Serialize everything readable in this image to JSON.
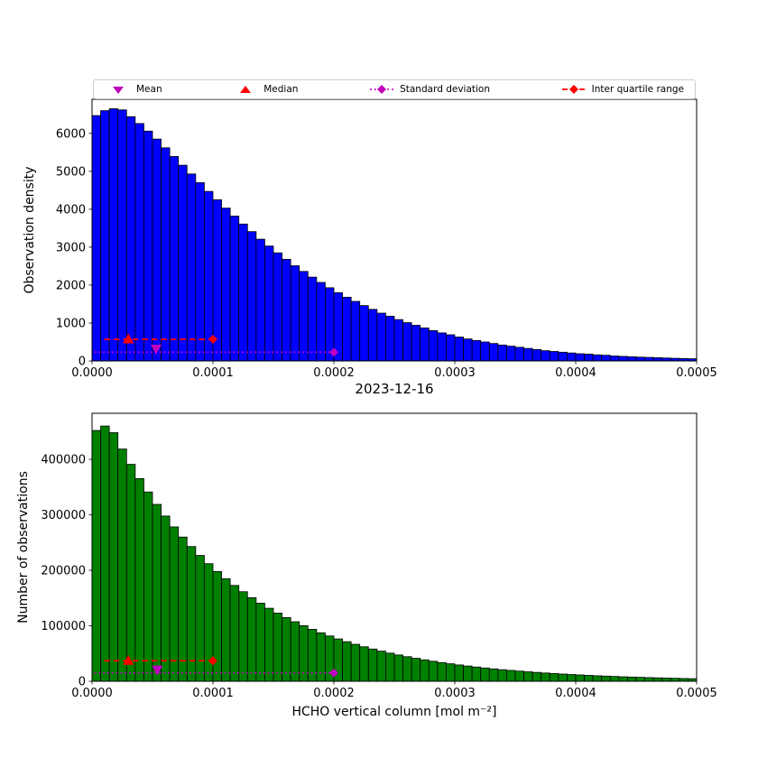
{
  "legend": {
    "items": [
      {
        "label": "Mean",
        "marker": "triangle-down",
        "line": "none",
        "color": "#bf00bf"
      },
      {
        "label": "Median",
        "marker": "triangle-up",
        "line": "none",
        "color": "#ff0000"
      },
      {
        "label": "Standard deviation",
        "marker": "diamond",
        "line": "dotted",
        "color": "#bf00bf"
      },
      {
        "label": "Inter quartile range",
        "marker": "diamond",
        "line": "dashed",
        "color": "#ff0000"
      }
    ]
  },
  "chart_data": [
    {
      "type": "bar",
      "name": "observation-density-histogram",
      "ylabel": "Observation density",
      "bar_color": "#0000ff",
      "edge_color": "#000000",
      "xlim": [
        0,
        0.0005
      ],
      "ylim": [
        0,
        6900
      ],
      "bin_width": 7.142857e-06,
      "xticks": [
        0,
        0.0001,
        0.0002,
        0.0003,
        0.0004,
        0.0005
      ],
      "xtick_labels": [
        "0.0000",
        "0.0001",
        "0.0002",
        "0.0003",
        "0.0004",
        "0.0005"
      ],
      "yticks": [
        0,
        1000,
        2000,
        3000,
        4000,
        5000,
        6000
      ],
      "ytick_labels": [
        "0",
        "1000",
        "2000",
        "3000",
        "4000",
        "5000",
        "6000"
      ],
      "values": [
        6470,
        6600,
        6650,
        6620,
        6440,
        6260,
        6060,
        5850,
        5620,
        5390,
        5160,
        4930,
        4700,
        4470,
        4250,
        4030,
        3820,
        3610,
        3410,
        3210,
        3030,
        2850,
        2680,
        2510,
        2360,
        2210,
        2070,
        1930,
        1800,
        1680,
        1570,
        1460,
        1360,
        1260,
        1180,
        1090,
        1010,
        940,
        870,
        800,
        740,
        690,
        630,
        580,
        540,
        500,
        460,
        420,
        390,
        360,
        330,
        300,
        270,
        250,
        230,
        210,
        190,
        180,
        160,
        150,
        130,
        120,
        110,
        100,
        93,
        85,
        77,
        70,
        64,
        58
      ],
      "markers": {
        "mean": {
          "x": 5.3e-05,
          "y": 320,
          "color": "#bf00bf"
        },
        "median": {
          "x": 3e-05,
          "y": 570,
          "color": "#ff0000"
        },
        "std": {
          "x_start": 2e-06,
          "x_end": 0.0002,
          "y": 230,
          "color": "#bf00bf"
        },
        "iqr": {
          "x_start": 1e-05,
          "x_end": 0.0001,
          "y": 570,
          "color": "#ff0000"
        }
      }
    },
    {
      "type": "bar",
      "name": "number-of-observations-histogram",
      "title": "2023-12-16",
      "ylabel": "Number of observations",
      "xlabel": "HCHO vertical column [mol m⁻²]",
      "bar_color": "#008000",
      "edge_color": "#000000",
      "xlim": [
        0,
        0.0005
      ],
      "ylim": [
        0,
        483000
      ],
      "bin_width": 7.142857e-06,
      "xticks": [
        0,
        0.0001,
        0.0002,
        0.0003,
        0.0004,
        0.0005
      ],
      "xtick_labels": [
        "0.0000",
        "0.0001",
        "0.0002",
        "0.0003",
        "0.0004",
        "0.0005"
      ],
      "yticks": [
        0,
        100000,
        200000,
        300000,
        400000
      ],
      "ytick_labels": [
        "0",
        "100000",
        "200000",
        "300000",
        "400000"
      ],
      "values": [
        452000,
        460000,
        448000,
        418500,
        391000,
        365300,
        341200,
        318800,
        297800,
        278200,
        259900,
        242800,
        226800,
        211900,
        197900,
        184900,
        172700,
        161400,
        150700,
        140800,
        131600,
        122900,
        114800,
        107300,
        100200,
        93600,
        87400,
        81700,
        76300,
        71300,
        66600,
        62200,
        58100,
        54300,
        50700,
        47400,
        44300,
        41400,
        38600,
        36100,
        33700,
        31500,
        29400,
        27500,
        25700,
        24000,
        22400,
        20900,
        19600,
        18300,
        17100,
        16000,
        14900,
        13900,
        13000,
        12200,
        11400,
        10600,
        9900,
        9300,
        8700,
        8100,
        7600,
        7100,
        6600,
        6200,
        5800,
        5400,
        5000,
        4700
      ],
      "markers": {
        "mean": {
          "x": 5.4e-05,
          "y": 21000,
          "color": "#bf00bf"
        },
        "median": {
          "x": 3e-05,
          "y": 37000,
          "color": "#ff0000"
        },
        "std": {
          "x_start": 2e-06,
          "x_end": 0.0002,
          "y": 15000,
          "color": "#bf00bf"
        },
        "iqr": {
          "x_start": 1e-05,
          "x_end": 0.0001,
          "y": 37000,
          "color": "#ff0000"
        }
      }
    }
  ]
}
